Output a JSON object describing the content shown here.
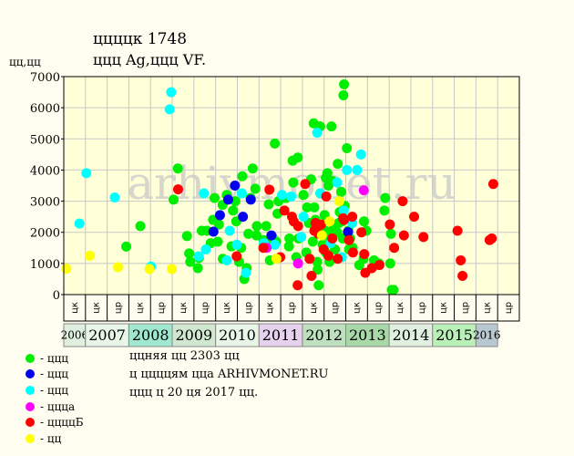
{
  "header": {
    "title": "ццццк 1748",
    "subtitle": "ццц Ag,ццц VF.",
    "y_unit": "цц,цц"
  },
  "watermark": "arhivmonet.ru",
  "info": {
    "line1": "ццняя цц 2303 цц",
    "line2": "ц ццццям цца ARHIVMONET.RU",
    "line3": "ццц ц 20 ця 2017 цц."
  },
  "legend": [
    {
      "label": "- ццц",
      "color": "#00ee00"
    },
    {
      "label": "- ццц",
      "color": "#0000ee"
    },
    {
      "label": "- ццц",
      "color": "#00ffff"
    },
    {
      "label": "- цццa",
      "color": "#ff00ff"
    },
    {
      "label": "- ццццБ",
      "color": "#ff0000"
    },
    {
      "label": "- цц",
      "color": "#ffff00"
    }
  ],
  "colors": {
    "plot_bg": "#ffffd8",
    "grid": "#c8c8c8",
    "page_bg": "#fffdf0",
    "watermark": "#c8c8c8"
  },
  "chart_data": {
    "type": "scatter",
    "title": "ццццк 1748",
    "ylabel": "цц,цц",
    "ylim": [
      0,
      7000
    ],
    "yticks": [
      0,
      1000,
      2000,
      3000,
      4000,
      5000,
      6000,
      7000
    ],
    "grid": true,
    "x_axis": "half-year periods, 2006 second half through 2016 first half",
    "years": [
      {
        "label": "2006",
        "color": "#dff0df"
      },
      {
        "label": "2007",
        "color": "#e8f6e8"
      },
      {
        "label": "2008",
        "color": "#9fe8cf"
      },
      {
        "label": "2009",
        "color": "#cfe8cf"
      },
      {
        "label": "2010",
        "color": "#e8f6e8"
      },
      {
        "label": "2011",
        "color": "#e6d2ee"
      },
      {
        "label": "2012",
        "color": "#bfe0bf"
      },
      {
        "label": "2013",
        "color": "#a8d8a8"
      },
      {
        "label": "2014",
        "color": "#dff0df"
      },
      {
        "label": "2015",
        "color": "#b8f0b8"
      },
      {
        "label": "2016",
        "color": "#b8c8d0"
      }
    ],
    "half_labels": [
      "цк",
      "цк",
      "цр",
      "цк",
      "цр",
      "цк",
      "цр",
      "цк",
      "цр",
      "цк",
      "цр",
      "цк",
      "цр",
      "цк",
      "цр",
      "цк",
      "цр",
      "цк",
      "цр",
      "цк",
      "цр"
    ],
    "x_range": [
      0,
      21
    ],
    "series": [
      {
        "name": "ццц",
        "color": "#00ee00",
        "points": [
          [
            2.88,
            1540
          ],
          [
            3.53,
            2200
          ],
          [
            5.26,
            4050
          ],
          [
            5.06,
            3050
          ],
          [
            5.78,
            1320
          ],
          [
            5.83,
            1050
          ],
          [
            6.18,
            850
          ],
          [
            6.23,
            1180
          ],
          [
            6.36,
            2050
          ],
          [
            5.68,
            1880
          ],
          [
            6.77,
            1650
          ],
          [
            6.88,
            2400
          ],
          [
            6.95,
            3100
          ],
          [
            7.15,
            2250
          ],
          [
            7.32,
            2880
          ],
          [
            7.51,
            3200
          ],
          [
            7.33,
            1150
          ],
          [
            7.73,
            1550
          ],
          [
            7.8,
            2700
          ],
          [
            7.91,
            3000
          ],
          [
            8.08,
            1050
          ],
          [
            8.23,
            3800
          ],
          [
            8.32,
            500
          ],
          [
            8.43,
            850
          ],
          [
            8.61,
            3100
          ],
          [
            8.71,
            4050
          ],
          [
            8.51,
            1950
          ],
          [
            8.18,
            1500
          ],
          [
            8.83,
            3400
          ],
          [
            8.88,
            1900
          ],
          [
            9.21,
            1750
          ],
          [
            9.3,
            1650
          ],
          [
            9.33,
            2200
          ],
          [
            9.5,
            1100
          ],
          [
            9.62,
            1850
          ],
          [
            9.73,
            4850
          ],
          [
            9.85,
            2600
          ],
          [
            9.79,
            1700
          ],
          [
            9.9,
            3000
          ],
          [
            10.25,
            3100
          ],
          [
            10.38,
            1550
          ],
          [
            10.55,
            4300
          ],
          [
            10.72,
            1200
          ],
          [
            10.79,
            4400
          ],
          [
            10.58,
            3600
          ],
          [
            11.05,
            3200
          ],
          [
            11.18,
            1350
          ],
          [
            11.3,
            2300
          ],
          [
            10.82,
            1800
          ],
          [
            11.4,
            3700
          ],
          [
            11.48,
            1700
          ],
          [
            11.6,
            2400
          ],
          [
            11.68,
            1050
          ],
          [
            11.7,
            800
          ],
          [
            11.75,
            300
          ],
          [
            11.82,
            5400
          ],
          [
            11.52,
            5500
          ],
          [
            11.55,
            2800
          ],
          [
            11.9,
            2100
          ],
          [
            11.93,
            1600
          ],
          [
            12.02,
            2550
          ],
          [
            12.08,
            1350
          ],
          [
            12.15,
            3900
          ],
          [
            12.08,
            3750
          ],
          [
            12.2,
            3500
          ],
          [
            12.25,
            1050
          ],
          [
            12.23,
            1850
          ],
          [
            12.34,
            5400
          ],
          [
            12.38,
            3650
          ],
          [
            12.42,
            2100
          ],
          [
            12.5,
            1450
          ],
          [
            12.6,
            2000
          ],
          [
            12.63,
            4200
          ],
          [
            12.68,
            2300
          ],
          [
            12.72,
            2650
          ],
          [
            12.79,
            3300
          ],
          [
            12.86,
            1800
          ],
          [
            12.89,
            6400
          ],
          [
            12.92,
            6750
          ],
          [
            12.95,
            2850
          ],
          [
            13.05,
            4700
          ],
          [
            13.12,
            2050
          ],
          [
            13.15,
            1450
          ],
          [
            13.2,
            1800
          ],
          [
            13.32,
            1500
          ],
          [
            13.62,
            950
          ],
          [
            13.82,
            1150
          ],
          [
            13.84,
            2350
          ],
          [
            13.95,
            2050
          ],
          [
            14.3,
            1100
          ],
          [
            14.53,
            1000
          ],
          [
            14.78,
            2700
          ],
          [
            14.82,
            3100
          ],
          [
            15.05,
            1000
          ],
          [
            15.08,
            1950
          ],
          [
            15.12,
            150
          ],
          [
            15.2,
            150
          ],
          [
            12.05,
            2050
          ],
          [
            12.82,
            2350
          ],
          [
            11.22,
            2800
          ],
          [
            10.4,
            1800
          ],
          [
            9.45,
            2900
          ],
          [
            8.9,
            2200
          ],
          [
            7.95,
            2350
          ],
          [
            6.6,
            2050
          ],
          [
            7.1,
            1700
          ]
        ]
      },
      {
        "name": "ццц",
        "color": "#0000ee",
        "points": [
          [
            6.9,
            2020
          ],
          [
            7.2,
            2550
          ],
          [
            7.58,
            3050
          ],
          [
            7.89,
            3500
          ],
          [
            8.26,
            2500
          ],
          [
            8.62,
            3050
          ],
          [
            9.57,
            1900
          ],
          [
            13.1,
            2010
          ]
        ]
      },
      {
        "name": "ццц",
        "color": "#00ffff",
        "points": [
          [
            0.72,
            2280
          ],
          [
            1.04,
            3900
          ],
          [
            2.35,
            3120
          ],
          [
            4.02,
            900
          ],
          [
            4.88,
            5950
          ],
          [
            4.95,
            6500
          ],
          [
            6.22,
            1230
          ],
          [
            6.46,
            3250
          ],
          [
            7.52,
            1100
          ],
          [
            7.98,
            1600
          ],
          [
            8.21,
            3250
          ],
          [
            9.22,
            1650
          ],
          [
            9.73,
            1600
          ],
          [
            10.06,
            3200
          ],
          [
            10.48,
            3150
          ],
          [
            10.95,
            1850
          ],
          [
            11.68,
            5200
          ],
          [
            11.82,
            3250
          ],
          [
            12.3,
            1650
          ],
          [
            12.6,
            3600
          ],
          [
            12.82,
            1200
          ],
          [
            12.91,
            2700
          ],
          [
            13.05,
            4000
          ],
          [
            13.3,
            2300
          ],
          [
            13.52,
            4000
          ],
          [
            13.7,
            4500
          ],
          [
            11.05,
            2500
          ],
          [
            8.4,
            700
          ],
          [
            6.55,
            1450
          ],
          [
            7.65,
            2050
          ]
        ]
      },
      {
        "name": "цццa",
        "color": "#ff00ff",
        "points": [
          [
            9.35,
            1500
          ],
          [
            10.8,
            1000
          ],
          [
            13.83,
            3350
          ]
        ]
      },
      {
        "name": "ццццБ",
        "color": "#ff0000",
        "points": [
          [
            5.27,
            3380
          ],
          [
            7.97,
            1230
          ],
          [
            9.2,
            1500
          ],
          [
            9.48,
            3370
          ],
          [
            10.17,
            2700
          ],
          [
            10.52,
            2500
          ],
          [
            10.6,
            2350
          ],
          [
            10.78,
            300
          ],
          [
            10.8,
            2200
          ],
          [
            11.13,
            3550
          ],
          [
            11.33,
            1150
          ],
          [
            11.42,
            600
          ],
          [
            11.55,
            2050
          ],
          [
            11.73,
            1950
          ],
          [
            11.86,
            2250
          ],
          [
            11.98,
            1450
          ],
          [
            12.1,
            3150
          ],
          [
            12.2,
            1250
          ],
          [
            12.63,
            1150
          ],
          [
            12.88,
            2450
          ],
          [
            12.92,
            2400
          ],
          [
            13.15,
            1750
          ],
          [
            13.3,
            2500
          ],
          [
            13.33,
            1350
          ],
          [
            13.72,
            2000
          ],
          [
            13.85,
            1300
          ],
          [
            13.9,
            700
          ],
          [
            14.2,
            850
          ],
          [
            14.55,
            950
          ],
          [
            15.03,
            2250
          ],
          [
            15.23,
            1500
          ],
          [
            15.62,
            3000
          ],
          [
            15.68,
            1900
          ],
          [
            16.15,
            2500
          ],
          [
            16.58,
            1850
          ],
          [
            18.15,
            2050
          ],
          [
            18.3,
            1100
          ],
          [
            18.38,
            600
          ],
          [
            19.63,
            1750
          ],
          [
            19.73,
            1800
          ],
          [
            19.8,
            3550
          ],
          [
            11.6,
            2300
          ],
          [
            12.38,
            1800
          ],
          [
            9.98,
            1200
          ]
        ]
      },
      {
        "name": "цц",
        "color": "#ffff00",
        "points": [
          [
            0.12,
            830
          ],
          [
            1.2,
            1250
          ],
          [
            2.5,
            880
          ],
          [
            3.95,
            820
          ],
          [
            4.98,
            820
          ],
          [
            9.8,
            1150
          ],
          [
            12.25,
            2350
          ],
          [
            12.7,
            3000
          ],
          [
            11.9,
            1900
          ]
        ]
      }
    ]
  }
}
